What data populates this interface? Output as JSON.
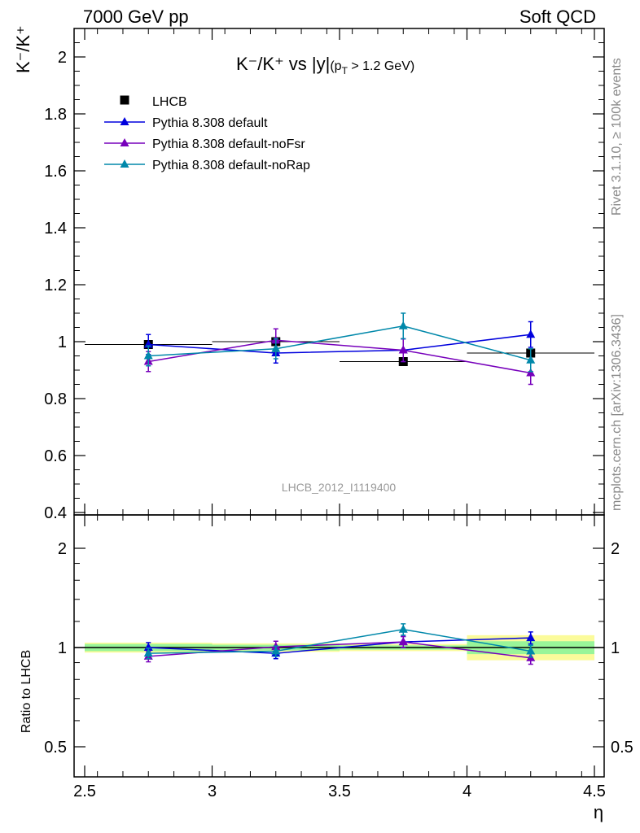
{
  "header": {
    "left": "7000 GeV pp",
    "right": "Soft QCD"
  },
  "side_labels": {
    "rivet": "Rivet 3.1.10, ≥ 100k events",
    "mcplots": "mcplots.cern.ch [arXiv:1306.3436]"
  },
  "chart_data": [
    {
      "type": "scatter",
      "title_main": "K⁻/K⁺ vs |y|",
      "title_cut": "(p",
      "title_cut_sub": "T",
      "title_cut_tail": " > 1.2 GeV)",
      "ylabel": "K⁻/K⁺",
      "analysis_id": "LHCB_2012_I1119400",
      "xlim": [
        2.5,
        4.5
      ],
      "ylim": [
        0.4,
        2.1
      ],
      "yticks": [
        0.4,
        0.6,
        0.8,
        1,
        1.2,
        1.4,
        1.6,
        1.8,
        2
      ],
      "ytick_labels": [
        "0.4",
        "0.6",
        "0.8",
        "1",
        "1.2",
        "1.4",
        "1.6",
        "1.8",
        "2"
      ],
      "legend_position": "top-left",
      "data": {
        "name": "LHCB",
        "x": [
          2.75,
          3.25,
          3.75,
          4.25
        ],
        "xerr": [
          0.25,
          0.25,
          0.25,
          0.25
        ],
        "y": [
          0.99,
          1.0,
          0.93,
          0.96
        ],
        "color": "#000000"
      },
      "series": [
        {
          "name": "Pythia 8.308 default",
          "color": "#0000dd",
          "x": [
            2.75,
            3.25,
            3.75,
            4.25
          ],
          "y": [
            0.99,
            0.96,
            0.97,
            1.025
          ],
          "yerr": [
            0.035,
            0.035,
            0.04,
            0.045
          ]
        },
        {
          "name": "Pythia 8.308 default-noFsr",
          "color": "#7700bb",
          "x": [
            2.75,
            3.25,
            3.75,
            4.25
          ],
          "y": [
            0.93,
            1.005,
            0.97,
            0.89
          ],
          "yerr": [
            0.035,
            0.04,
            0.04,
            0.04
          ]
        },
        {
          "name": "Pythia 8.308 default-noRap",
          "color": "#0088aa",
          "x": [
            2.75,
            3.25,
            3.75,
            4.25
          ],
          "y": [
            0.95,
            0.975,
            1.055,
            0.935
          ],
          "yerr": [
            0.035,
            0.035,
            0.045,
            0.04
          ]
        }
      ]
    },
    {
      "type": "scatter",
      "ylabel": "Ratio to LHCB",
      "xlabel": "η",
      "xlim": [
        2.5,
        4.5
      ],
      "ylim": [
        0.4,
        2.4
      ],
      "log_y": true,
      "yticks": [
        0.5,
        1,
        2
      ],
      "ytick_labels": [
        "0.5",
        "1",
        "2"
      ],
      "xticks": [
        2.5,
        3,
        3.5,
        4,
        4.5
      ],
      "xtick_labels": [
        "2.5",
        "3",
        "3.5",
        "4",
        "4.5"
      ],
      "bands": [
        {
          "x0": 2.5,
          "x1": 3.0,
          "yellow": [
            0.965,
            1.035
          ],
          "green": [
            0.975,
            1.025
          ]
        },
        {
          "x0": 3.0,
          "x1": 3.5,
          "yellow": [
            0.97,
            1.03
          ],
          "green": [
            0.98,
            1.02
          ]
        },
        {
          "x0": 3.5,
          "x1": 4.0,
          "yellow": [
            0.975,
            1.025
          ],
          "green": [
            0.985,
            1.015
          ]
        },
        {
          "x0": 4.0,
          "x1": 4.5,
          "yellow": [
            0.915,
            1.09
          ],
          "green": [
            0.955,
            1.045
          ]
        }
      ],
      "band_colors": {
        "yellow": "#fbfb9b",
        "green": "#99f599"
      },
      "series": [
        {
          "name": "Pythia 8.308 default",
          "color": "#0000dd",
          "x": [
            2.75,
            3.25,
            3.75,
            4.25
          ],
          "y": [
            1.0,
            0.96,
            1.04,
            1.07
          ],
          "yerr": [
            0.035,
            0.035,
            0.04,
            0.045
          ]
        },
        {
          "name": "Pythia 8.308 default-noFsr",
          "color": "#7700bb",
          "x": [
            2.75,
            3.25,
            3.75,
            4.25
          ],
          "y": [
            0.94,
            1.005,
            1.04,
            0.93
          ],
          "yerr": [
            0.035,
            0.04,
            0.04,
            0.04
          ]
        },
        {
          "name": "Pythia 8.308 default-noRap",
          "color": "#0088aa",
          "x": [
            2.75,
            3.25,
            3.75,
            4.25
          ],
          "y": [
            0.96,
            0.975,
            1.135,
            0.975
          ],
          "yerr": [
            0.035,
            0.035,
            0.045,
            0.04
          ]
        }
      ]
    }
  ]
}
